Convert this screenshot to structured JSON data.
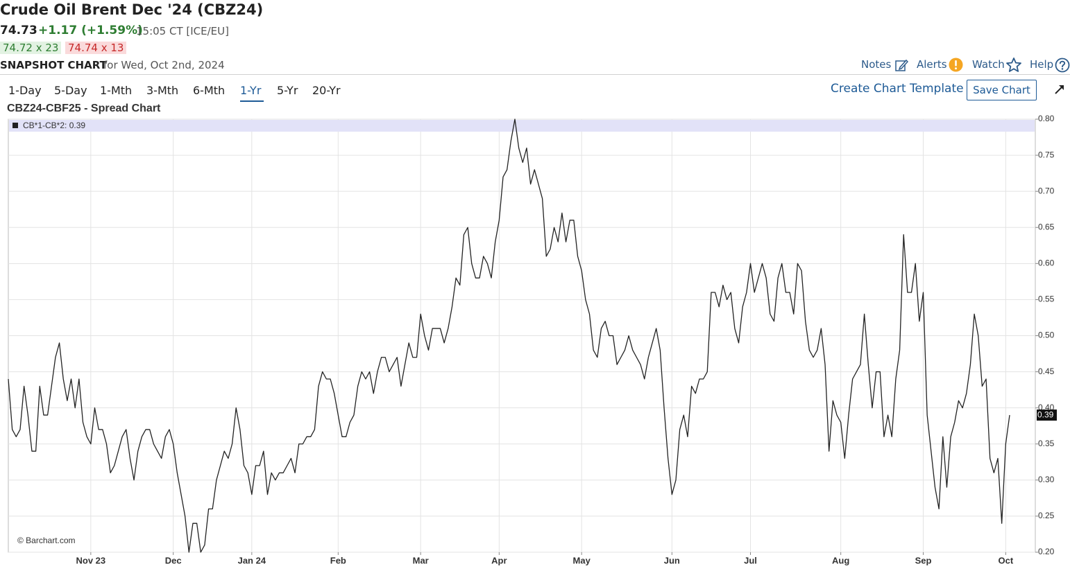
{
  "header": {
    "title": "Crude Oil Brent Dec '24 (CBZ24)",
    "last": "74.73",
    "change": "+1.17 (+1.59%)",
    "time": "15:05 CT [ICE/EU]",
    "bid": "74.72 x 23",
    "ask": "74.74 x 13",
    "snapshot": "SNAPSHOT CHART",
    "date": "for Wed, Oct 2nd, 2024"
  },
  "toolbar": {
    "links": [
      "Notes",
      "Alerts",
      "Watch",
      "Help"
    ],
    "periods": [
      "1-Day",
      "5-Day",
      "1-Mth",
      "3-Mth",
      "6-Mth",
      "1-Yr",
      "5-Yr",
      "20-Yr"
    ],
    "create_template": "Create Chart Template",
    "save": "Save Chart"
  },
  "chart_data": {
    "type": "line",
    "title": "CBZ24-CBF25 - Spread Chart",
    "credit": "© Barchart.com",
    "categories": [
      null,
      null,
      null,
      null,
      null,
      null,
      null,
      null,
      null,
      null,
      null,
      null,
      null,
      null,
      null,
      null,
      null,
      null,
      null,
      null,
      null,
      "Nov 23",
      null,
      null,
      null,
      null,
      null,
      null,
      null,
      null,
      null,
      null,
      null,
      null,
      null,
      null,
      null,
      null,
      null,
      null,
      null,
      null,
      "Dec",
      null,
      null,
      null,
      null,
      null,
      null,
      null,
      null,
      null,
      null,
      null,
      null,
      null,
      null,
      null,
      null,
      null,
      null,
      null,
      "Jan 24",
      null,
      null,
      null,
      null,
      null,
      null,
      null,
      null,
      null,
      null,
      null,
      null,
      null,
      null,
      null,
      null,
      null,
      null,
      null,
      null,
      null,
      "Feb",
      null,
      null,
      null,
      null,
      null,
      null,
      null,
      null,
      null,
      null,
      null,
      null,
      null,
      null,
      null,
      null,
      null,
      null,
      null,
      null,
      "Mar",
      null,
      null,
      null,
      null,
      null,
      null,
      null,
      null,
      null,
      null,
      null,
      null,
      null,
      null,
      null,
      null,
      null,
      null,
      null,
      "Apr",
      null,
      null,
      null,
      null,
      null,
      null,
      null,
      null,
      null,
      null,
      null,
      null,
      null,
      null,
      null,
      null,
      null,
      null,
      null,
      null,
      "May",
      null,
      null,
      null,
      null,
      null,
      null,
      null,
      null,
      null,
      null,
      null,
      null,
      null,
      null,
      null,
      null,
      null,
      null,
      null,
      null,
      null,
      null,
      "Jun",
      null,
      null,
      null,
      null,
      null,
      null,
      null,
      null,
      null,
      null,
      null,
      null,
      null,
      null,
      null,
      null,
      null,
      null,
      null,
      "Jul",
      null,
      null,
      null,
      null,
      null,
      null,
      null,
      null,
      null,
      null,
      null,
      null,
      null,
      null,
      null,
      null,
      null,
      null,
      null,
      null,
      null,
      null,
      "Aug",
      null,
      null,
      null,
      null,
      null,
      null,
      null,
      null,
      null,
      null,
      null,
      null,
      null,
      null,
      null,
      null,
      null,
      null,
      null,
      null,
      "Sep",
      null,
      null,
      null,
      null,
      null,
      null,
      null,
      null,
      null,
      null,
      null,
      null,
      null,
      null,
      null,
      null,
      null,
      null,
      null,
      null,
      "Oct",
      null
    ],
    "series": [
      {
        "name": "CB*1-CB*2: 0.39",
        "color": "#222222",
        "values": [
          0.44,
          0.37,
          0.36,
          0.37,
          0.43,
          0.39,
          0.34,
          0.34,
          0.43,
          0.39,
          0.39,
          0.43,
          0.47,
          0.49,
          0.44,
          0.41,
          0.44,
          0.4,
          0.44,
          0.38,
          0.36,
          0.35,
          0.4,
          0.37,
          0.37,
          0.35,
          0.31,
          0.32,
          0.34,
          0.36,
          0.37,
          0.33,
          0.3,
          0.34,
          0.36,
          0.37,
          0.37,
          0.35,
          0.34,
          0.33,
          0.36,
          0.37,
          0.35,
          0.31,
          0.28,
          0.25,
          0.2,
          0.24,
          0.24,
          0.2,
          0.21,
          0.26,
          0.26,
          0.3,
          0.32,
          0.34,
          0.33,
          0.35,
          0.4,
          0.37,
          0.32,
          0.31,
          0.28,
          0.32,
          0.32,
          0.34,
          0.28,
          0.31,
          0.3,
          0.31,
          0.31,
          0.32,
          0.33,
          0.31,
          0.35,
          0.35,
          0.36,
          0.36,
          0.37,
          0.43,
          0.45,
          0.44,
          0.44,
          0.42,
          0.39,
          0.36,
          0.36,
          0.38,
          0.39,
          0.43,
          0.45,
          0.44,
          0.45,
          0.42,
          0.45,
          0.47,
          0.47,
          0.45,
          0.46,
          0.47,
          0.43,
          0.46,
          0.49,
          0.47,
          0.47,
          0.53,
          0.5,
          0.48,
          0.51,
          0.51,
          0.51,
          0.49,
          0.51,
          0.54,
          0.58,
          0.57,
          0.64,
          0.65,
          0.6,
          0.58,
          0.58,
          0.61,
          0.6,
          0.58,
          0.63,
          0.66,
          0.72,
          0.73,
          0.77,
          0.8,
          0.76,
          0.74,
          0.76,
          0.71,
          0.73,
          0.71,
          0.69,
          0.61,
          0.62,
          0.65,
          0.63,
          0.67,
          0.63,
          0.66,
          0.66,
          0.61,
          0.59,
          0.55,
          0.53,
          0.48,
          0.47,
          0.51,
          0.52,
          0.5,
          0.5,
          0.46,
          0.47,
          0.48,
          0.5,
          0.48,
          0.47,
          0.46,
          0.44,
          0.47,
          0.49,
          0.51,
          0.48,
          0.4,
          0.33,
          0.28,
          0.3,
          0.37,
          0.39,
          0.36,
          0.43,
          0.42,
          0.44,
          0.44,
          0.45,
          0.56,
          0.56,
          0.54,
          0.57,
          0.55,
          0.56,
          0.51,
          0.49,
          0.54,
          0.56,
          0.6,
          0.56,
          0.58,
          0.6,
          0.58,
          0.53,
          0.52,
          0.58,
          0.6,
          0.56,
          0.56,
          0.53,
          0.6,
          0.59,
          0.52,
          0.48,
          0.47,
          0.48,
          0.51,
          0.46,
          0.34,
          0.41,
          0.39,
          0.38,
          0.33,
          0.39,
          0.44,
          0.45,
          0.46,
          0.53,
          0.46,
          0.4,
          0.45,
          0.45,
          0.36,
          0.39,
          0.36,
          0.44,
          0.48,
          0.64,
          0.56,
          0.56,
          0.6,
          0.52,
          0.56,
          0.39,
          0.34,
          0.29,
          0.26,
          0.36,
          0.29,
          0.36,
          0.38,
          0.41,
          0.4,
          0.42,
          0.46,
          0.53,
          0.5,
          0.43,
          0.44,
          0.33,
          0.31,
          0.33,
          0.24,
          0.35,
          0.39
        ]
      }
    ],
    "ylim": [
      0.2,
      0.8
    ],
    "yticks": [
      {
        "value": 0.2,
        "label": "0.20"
      },
      0.25,
      {
        "value": 0.3,
        "label": "0.30"
      },
      0.35,
      {
        "value": 0.4,
        "label": "0.40"
      },
      0.45,
      {
        "value": 0.5,
        "label": "0.50"
      },
      0.55,
      {
        "value": 0.6,
        "label": "0.60"
      },
      0.65,
      {
        "value": 0.7,
        "label": "0.70"
      },
      0.75,
      {
        "value": 0.8,
        "label": "0.80"
      }
    ],
    "grid": true
  }
}
